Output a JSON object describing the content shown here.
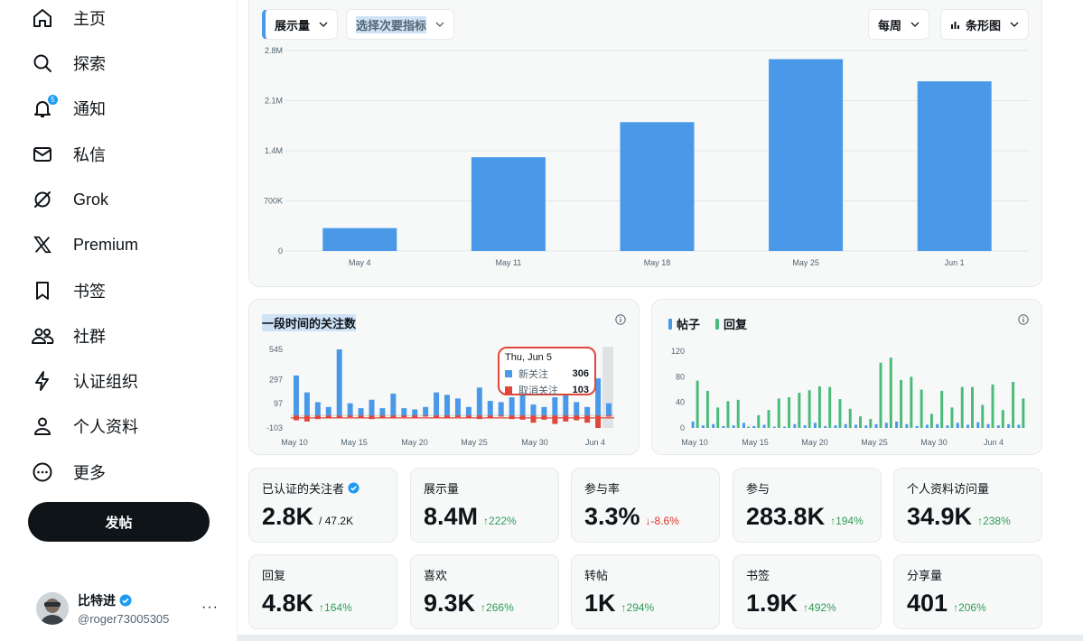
{
  "sidebar": {
    "items": [
      {
        "label": "主页",
        "icon": "home-icon"
      },
      {
        "label": "探索",
        "icon": "search-icon"
      },
      {
        "label": "通知",
        "icon": "bell-icon",
        "badge": "5"
      },
      {
        "label": "私信",
        "icon": "mail-icon"
      },
      {
        "label": "Grok",
        "icon": "grok-icon"
      },
      {
        "label": "Premium",
        "icon": "x-logo-icon"
      },
      {
        "label": "书签",
        "icon": "bookmark-icon"
      },
      {
        "label": "社群",
        "icon": "communities-icon"
      },
      {
        "label": "认证组织",
        "icon": "lightning-icon"
      },
      {
        "label": "个人资料",
        "icon": "person-icon"
      },
      {
        "label": "更多",
        "icon": "more-circle-icon"
      }
    ],
    "post_button": "发帖",
    "account": {
      "name": "比特进",
      "handle": "@roger73005305"
    }
  },
  "main_chart_controls": {
    "primary_metric": "展示量",
    "secondary_metric": "选择次要指标",
    "period": "每周",
    "chart_type": "条形图"
  },
  "followers_card": {
    "title": "一段时间的关注数",
    "tooltip": {
      "date": "Thu, Jun 5",
      "rows": [
        {
          "label": "新关注",
          "value": "306",
          "color": "#4a99e9"
        },
        {
          "label": "取消关注",
          "value": "103",
          "color": "#e0463a"
        }
      ]
    }
  },
  "posts_card": {
    "legend": [
      {
        "label": "帖子",
        "color": "#4a99e9"
      },
      {
        "label": "回复",
        "color": "#4cbb7a"
      }
    ]
  },
  "chart_data": [
    {
      "type": "bar",
      "categories": [
        "May 4",
        "May 11",
        "May 18",
        "May 25",
        "Jun 1"
      ],
      "values": [
        320000,
        1310000,
        1800000,
        2680000,
        2370000
      ],
      "yticks": [
        "0",
        "700K",
        "1.4M",
        "2.1M",
        "2.8M"
      ],
      "ylim": [
        0,
        2800000
      ],
      "color": "#4a99e9",
      "grid": true
    },
    {
      "type": "bar",
      "x_ticks": [
        "May 10",
        "May 15",
        "May 20",
        "May 25",
        "May 30",
        "Jun 4"
      ],
      "yticks": [
        "-103",
        "97",
        "297",
        "545"
      ],
      "ylim": [
        -103,
        545
      ],
      "series": [
        {
          "name": "新关注",
          "color": "#4a99e9",
          "values": [
            330,
            190,
            110,
            70,
            545,
            100,
            60,
            130,
            60,
            180,
            60,
            50,
            70,
            190,
            170,
            140,
            70,
            230,
            120,
            110,
            150,
            190,
            90,
            70,
            150,
            220,
            110,
            70,
            306,
            100
          ]
        },
        {
          "name": "取消关注",
          "color": "#e0463a",
          "values": [
            -40,
            -50,
            -30,
            -25,
            -20,
            -15,
            -20,
            -30,
            -20,
            -25,
            -15,
            -20,
            -10,
            -20,
            -25,
            -15,
            -20,
            -30,
            -25,
            -10,
            -30,
            -35,
            -60,
            -35,
            -70,
            -50,
            -40,
            -60,
            -103,
            -10
          ]
        }
      ]
    },
    {
      "type": "bar",
      "x_ticks": [
        "May 10",
        "May 15",
        "May 20",
        "May 25",
        "May 30",
        "Jun 4"
      ],
      "yticks": [
        "0",
        "40",
        "80",
        "120"
      ],
      "ylim": [
        0,
        120
      ],
      "series": [
        {
          "name": "帖子",
          "color": "#4a99e9",
          "values": [
            10,
            4,
            6,
            3,
            4,
            8,
            3,
            5,
            2,
            2,
            6,
            4,
            8,
            3,
            4,
            6,
            5,
            4,
            6,
            8,
            10,
            6,
            3,
            5,
            6,
            4,
            8,
            5,
            9,
            6,
            4,
            6,
            5
          ]
        },
        {
          "name": "回复",
          "color": "#4cbb7a",
          "values": [
            74,
            58,
            32,
            42,
            44,
            2,
            20,
            28,
            46,
            48,
            55,
            59,
            65,
            64,
            45,
            30,
            18,
            14,
            102,
            110,
            75,
            80,
            60,
            22,
            58,
            32,
            64,
            64,
            36,
            68,
            28,
            72,
            46
          ]
        }
      ]
    }
  ],
  "stats": [
    {
      "label": "已认证的关注者",
      "verified": true,
      "value": "2.8K",
      "sub": "/ 47.2K"
    },
    {
      "label": "展示量",
      "value": "8.4M",
      "change": "↑222%",
      "dir": "up"
    },
    {
      "label": "参与率",
      "value": "3.3%",
      "change": "↓-8.6%",
      "dir": "down"
    },
    {
      "label": "参与",
      "value": "283.8K",
      "change": "↑194%",
      "dir": "up"
    },
    {
      "label": "个人资料访问量",
      "value": "34.9K",
      "change": "↑238%",
      "dir": "up"
    },
    {
      "label": "回复",
      "value": "4.8K",
      "change": "↑164%",
      "dir": "up"
    },
    {
      "label": "喜欢",
      "value": "9.3K",
      "change": "↑266%",
      "dir": "up"
    },
    {
      "label": "转帖",
      "value": "1K",
      "change": "↑294%",
      "dir": "up"
    },
    {
      "label": "书签",
      "value": "1.9K",
      "change": "↑492%",
      "dir": "up"
    },
    {
      "label": "分享量",
      "value": "401",
      "change": "↑206%",
      "dir": "up"
    }
  ]
}
